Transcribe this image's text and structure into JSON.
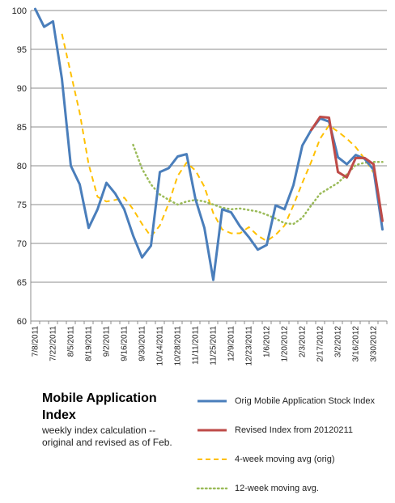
{
  "chart_data": {
    "type": "line",
    "title": "Mobile Application Index",
    "subtitle": "weekly index calculation -- original and revised  as of Feb.",
    "ylim": [
      60,
      100
    ],
    "yticks": [
      60,
      65,
      70,
      75,
      80,
      85,
      90,
      95,
      100
    ],
    "xlabels": [
      "7/8/2011",
      "7/22/2011",
      "8/5/2011",
      "8/19/2011",
      "9/2/2011",
      "9/16/2011",
      "9/30/2011",
      "10/14/2011",
      "10/28/2011",
      "11/11/2011",
      "11/25/2011",
      "12/9/2011",
      "12/23/2011",
      "1/6/2012",
      "1/20/2012",
      "2/3/2012",
      "2/17/2012",
      "3/2/2012",
      "3/16/2012",
      "3/30/2012"
    ],
    "legend_position": "bottom-right",
    "gridlines": true,
    "series": [
      {
        "name": "Orig Mobile Application Stock Index",
        "color": "#4a7ebb",
        "style": "solid",
        "start_index": 0,
        "values": [
          100.2,
          97.9,
          98.6,
          91.2,
          80.0,
          77.6,
          72.0,
          74.4,
          77.8,
          76.4,
          74.4,
          71.0,
          68.2,
          69.7,
          79.2,
          79.7,
          81.2,
          81.5,
          75.7,
          72.0,
          65.3,
          74.4,
          74.0,
          72.2,
          70.8,
          69.2,
          69.8,
          74.9,
          74.4,
          77.5,
          82.6,
          84.6,
          86.1,
          85.7,
          81.1,
          80.2,
          81.4,
          80.9,
          79.5,
          71.8
        ]
      },
      {
        "name": "Revised Index from 20120211",
        "color": "#be4b48",
        "style": "solid",
        "start_index": 31,
        "values": [
          84.6,
          86.3,
          86.2,
          79.2,
          78.5,
          81.0,
          81.0,
          80.2,
          72.9
        ]
      },
      {
        "name": "4-week moving avg (orig)",
        "color": "#ffc000",
        "style": "dashed",
        "start_index": 3,
        "values": [
          97.0,
          91.9,
          86.8,
          80.2,
          76.0,
          75.4,
          75.6,
          75.9,
          74.4,
          72.5,
          70.9,
          72.3,
          75.2,
          78.7,
          80.4,
          79.4,
          77.3,
          73.9,
          71.8,
          71.3,
          71.3,
          72.1,
          71.0,
          70.3,
          71.1,
          72.3,
          74.9,
          77.8,
          80.5,
          83.5,
          85.2,
          84.4,
          83.5,
          82.4,
          80.9,
          79.1
        ]
      },
      {
        "name": "12-week moving avg.",
        "color": "#9bbb59",
        "style": "dotted",
        "start_index": 11,
        "values": [
          82.7,
          79.6,
          77.6,
          76.3,
          75.6,
          75.0,
          75.4,
          75.6,
          75.4,
          75.0,
          74.6,
          74.4,
          74.5,
          74.3,
          74.1,
          73.7,
          73.2,
          72.6,
          72.5,
          73.3,
          74.9,
          76.4,
          77.1,
          77.8,
          78.9,
          80.1,
          80.4,
          80.5,
          80.5
        ]
      }
    ]
  }
}
